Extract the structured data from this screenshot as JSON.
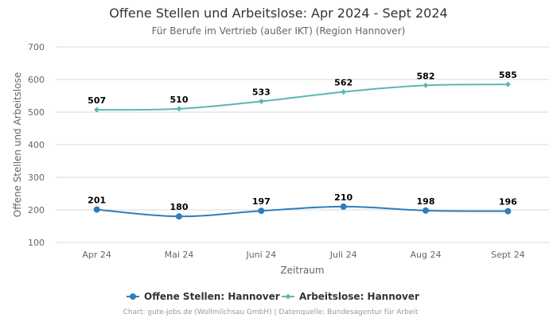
{
  "chart_data": {
    "type": "line",
    "title": "Offene Stellen und Arbeitslose: Apr 2024 - Sept 2024",
    "subtitle": "Für Berufe im Vertrieb (außer IKT) (Region Hannover)",
    "xlabel": "Zeitraum",
    "ylabel": "Offene Stellen und Arbeitslose",
    "categories": [
      "Apr 24",
      "Mai 24",
      "Juni 24",
      "Juli 24",
      "Aug 24",
      "Sept 24"
    ],
    "ylim": [
      100,
      700
    ],
    "yticks": [
      100,
      200,
      300,
      400,
      500,
      600,
      700
    ],
    "grid": true,
    "legend_position": "bottom",
    "series": [
      {
        "name": "Offene Stellen: Hannover",
        "values": [
          201,
          180,
          197,
          210,
          198,
          196
        ],
        "color": "#2f7ebc",
        "marker": "circle"
      },
      {
        "name": "Arbeitslose: Hannover",
        "values": [
          507,
          510,
          533,
          562,
          582,
          585
        ],
        "color": "#5bb8b0",
        "marker": "diamond"
      }
    ],
    "credits": "Chart: gute-jobs.de (Wollmilchsau GmbH) | Datenquelle: Bundesagentur für Arbeit"
  }
}
